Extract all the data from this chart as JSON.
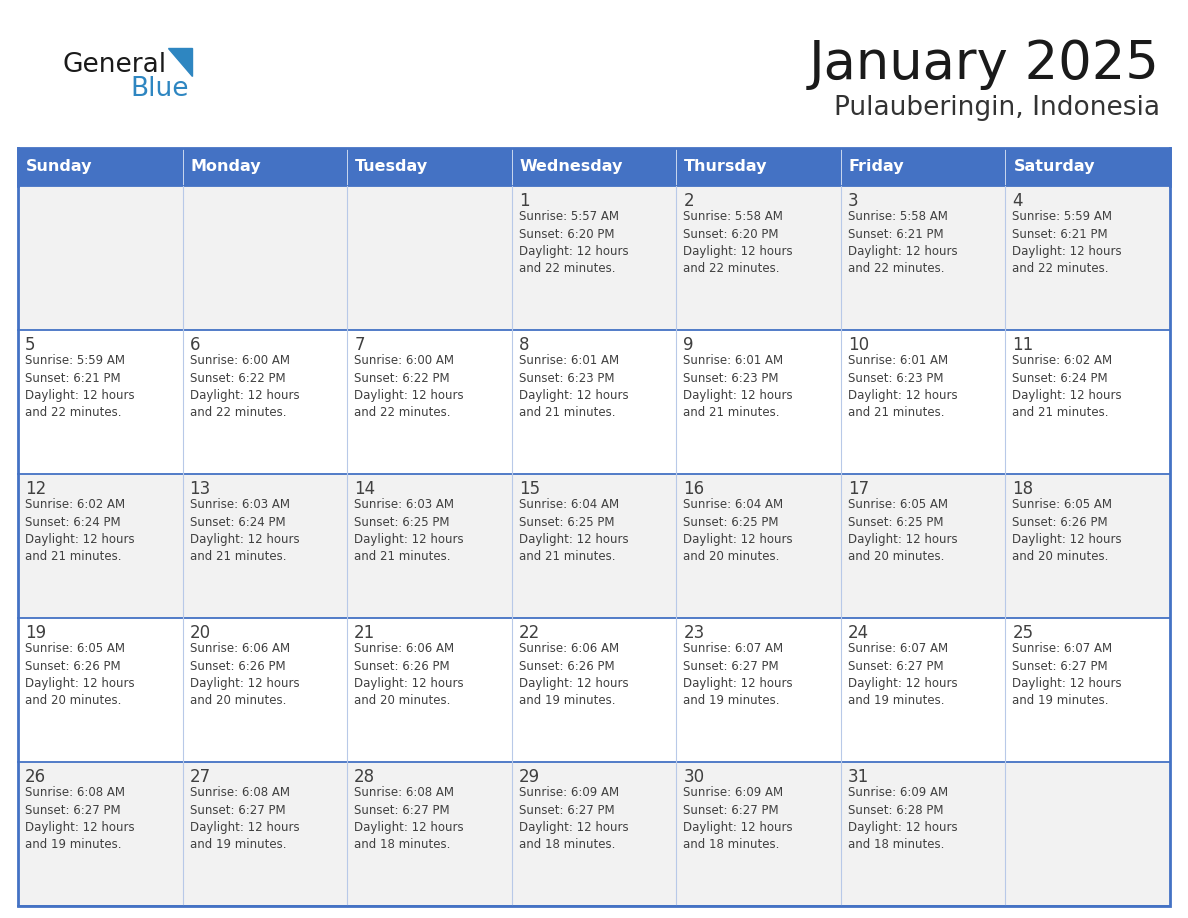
{
  "title": "January 2025",
  "subtitle": "Pulauberingin, Indonesia",
  "header_color": "#4472C4",
  "header_text_color": "#FFFFFF",
  "cell_bg_white": "#FFFFFF",
  "cell_bg_gray": "#F2F2F2",
  "border_color_blue": "#4472C4",
  "border_color_light": "#B8C9E8",
  "text_color": "#404040",
  "days_of_week": [
    "Sunday",
    "Monday",
    "Tuesday",
    "Wednesday",
    "Thursday",
    "Friday",
    "Saturday"
  ],
  "calendar_data": [
    [
      {
        "day": "",
        "info": ""
      },
      {
        "day": "",
        "info": ""
      },
      {
        "day": "",
        "info": ""
      },
      {
        "day": "1",
        "info": "Sunrise: 5:57 AM\nSunset: 6:20 PM\nDaylight: 12 hours\nand 22 minutes."
      },
      {
        "day": "2",
        "info": "Sunrise: 5:58 AM\nSunset: 6:20 PM\nDaylight: 12 hours\nand 22 minutes."
      },
      {
        "day": "3",
        "info": "Sunrise: 5:58 AM\nSunset: 6:21 PM\nDaylight: 12 hours\nand 22 minutes."
      },
      {
        "day": "4",
        "info": "Sunrise: 5:59 AM\nSunset: 6:21 PM\nDaylight: 12 hours\nand 22 minutes."
      }
    ],
    [
      {
        "day": "5",
        "info": "Sunrise: 5:59 AM\nSunset: 6:21 PM\nDaylight: 12 hours\nand 22 minutes."
      },
      {
        "day": "6",
        "info": "Sunrise: 6:00 AM\nSunset: 6:22 PM\nDaylight: 12 hours\nand 22 minutes."
      },
      {
        "day": "7",
        "info": "Sunrise: 6:00 AM\nSunset: 6:22 PM\nDaylight: 12 hours\nand 22 minutes."
      },
      {
        "day": "8",
        "info": "Sunrise: 6:01 AM\nSunset: 6:23 PM\nDaylight: 12 hours\nand 21 minutes."
      },
      {
        "day": "9",
        "info": "Sunrise: 6:01 AM\nSunset: 6:23 PM\nDaylight: 12 hours\nand 21 minutes."
      },
      {
        "day": "10",
        "info": "Sunrise: 6:01 AM\nSunset: 6:23 PM\nDaylight: 12 hours\nand 21 minutes."
      },
      {
        "day": "11",
        "info": "Sunrise: 6:02 AM\nSunset: 6:24 PM\nDaylight: 12 hours\nand 21 minutes."
      }
    ],
    [
      {
        "day": "12",
        "info": "Sunrise: 6:02 AM\nSunset: 6:24 PM\nDaylight: 12 hours\nand 21 minutes."
      },
      {
        "day": "13",
        "info": "Sunrise: 6:03 AM\nSunset: 6:24 PM\nDaylight: 12 hours\nand 21 minutes."
      },
      {
        "day": "14",
        "info": "Sunrise: 6:03 AM\nSunset: 6:25 PM\nDaylight: 12 hours\nand 21 minutes."
      },
      {
        "day": "15",
        "info": "Sunrise: 6:04 AM\nSunset: 6:25 PM\nDaylight: 12 hours\nand 21 minutes."
      },
      {
        "day": "16",
        "info": "Sunrise: 6:04 AM\nSunset: 6:25 PM\nDaylight: 12 hours\nand 20 minutes."
      },
      {
        "day": "17",
        "info": "Sunrise: 6:05 AM\nSunset: 6:25 PM\nDaylight: 12 hours\nand 20 minutes."
      },
      {
        "day": "18",
        "info": "Sunrise: 6:05 AM\nSunset: 6:26 PM\nDaylight: 12 hours\nand 20 minutes."
      }
    ],
    [
      {
        "day": "19",
        "info": "Sunrise: 6:05 AM\nSunset: 6:26 PM\nDaylight: 12 hours\nand 20 minutes."
      },
      {
        "day": "20",
        "info": "Sunrise: 6:06 AM\nSunset: 6:26 PM\nDaylight: 12 hours\nand 20 minutes."
      },
      {
        "day": "21",
        "info": "Sunrise: 6:06 AM\nSunset: 6:26 PM\nDaylight: 12 hours\nand 20 minutes."
      },
      {
        "day": "22",
        "info": "Sunrise: 6:06 AM\nSunset: 6:26 PM\nDaylight: 12 hours\nand 19 minutes."
      },
      {
        "day": "23",
        "info": "Sunrise: 6:07 AM\nSunset: 6:27 PM\nDaylight: 12 hours\nand 19 minutes."
      },
      {
        "day": "24",
        "info": "Sunrise: 6:07 AM\nSunset: 6:27 PM\nDaylight: 12 hours\nand 19 minutes."
      },
      {
        "day": "25",
        "info": "Sunrise: 6:07 AM\nSunset: 6:27 PM\nDaylight: 12 hours\nand 19 minutes."
      }
    ],
    [
      {
        "day": "26",
        "info": "Sunrise: 6:08 AM\nSunset: 6:27 PM\nDaylight: 12 hours\nand 19 minutes."
      },
      {
        "day": "27",
        "info": "Sunrise: 6:08 AM\nSunset: 6:27 PM\nDaylight: 12 hours\nand 19 minutes."
      },
      {
        "day": "28",
        "info": "Sunrise: 6:08 AM\nSunset: 6:27 PM\nDaylight: 12 hours\nand 18 minutes."
      },
      {
        "day": "29",
        "info": "Sunrise: 6:09 AM\nSunset: 6:27 PM\nDaylight: 12 hours\nand 18 minutes."
      },
      {
        "day": "30",
        "info": "Sunrise: 6:09 AM\nSunset: 6:27 PM\nDaylight: 12 hours\nand 18 minutes."
      },
      {
        "day": "31",
        "info": "Sunrise: 6:09 AM\nSunset: 6:28 PM\nDaylight: 12 hours\nand 18 minutes."
      },
      {
        "day": "",
        "info": ""
      }
    ]
  ],
  "logo_general_color": "#1A1A1A",
  "logo_blue_color": "#2E86C1",
  "logo_triangle_color": "#2E86C1"
}
